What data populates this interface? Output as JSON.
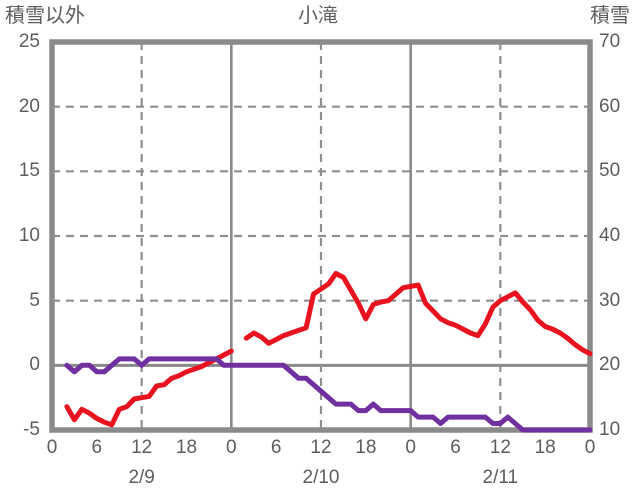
{
  "header": {
    "left_axis_title": "積雪以外",
    "chart_title": "小滝",
    "right_axis_title": "積雪"
  },
  "colors": {
    "temperature_line": "#e8131f",
    "snow_line": "#7030a0",
    "frame": "#8a8a8a",
    "grid": "#8f8f8f",
    "text": "#5d5d5d",
    "background": "#ffffff"
  },
  "chart_data": {
    "type": "line",
    "title": "小滝",
    "grid": "on",
    "left_axis": {
      "title": "積雪以外",
      "ticks": [
        25,
        20,
        15,
        10,
        5,
        0,
        -5
      ],
      "range": [
        -5,
        25
      ]
    },
    "right_axis": {
      "title": "積雪",
      "ticks": [
        70,
        60,
        50,
        40,
        30,
        20,
        10
      ],
      "range": [
        10,
        70
      ]
    },
    "x_axis": {
      "range_hours": [
        0,
        72
      ],
      "tick_hours": [
        0,
        6,
        12,
        18,
        24,
        30,
        36,
        42,
        48,
        54,
        60,
        66,
        72
      ],
      "tick_labels": [
        "0",
        "6",
        "12",
        "18",
        "0",
        "6",
        "12",
        "18",
        "0",
        "6",
        "12",
        "18",
        "0"
      ],
      "date_labels": [
        {
          "label": "2/9",
          "hour": 12
        },
        {
          "label": "2/10",
          "hour": 36
        },
        {
          "label": "2/11",
          "hour": 60
        }
      ],
      "dashed_gridline_hours": [
        12,
        36,
        60
      ],
      "solid_gridline_hours": [
        24,
        48
      ]
    },
    "dashed_gridline_left_values": [
      20,
      15,
      10,
      5
    ],
    "solid_gridline_left_values": [
      0
    ],
    "series": [
      {
        "name": "積雪以外",
        "axis": "left",
        "color": "#e8131f",
        "hours": [
          2,
          3,
          4,
          5,
          6,
          7,
          8,
          9,
          10,
          11,
          12,
          13,
          14,
          15,
          16,
          17,
          18,
          19,
          20,
          21,
          22,
          23,
          24,
          26,
          27,
          28,
          29,
          30,
          31,
          32,
          33,
          34,
          35,
          36,
          37,
          38,
          39,
          40,
          41,
          42,
          43,
          44,
          45,
          46,
          47,
          48,
          49,
          50,
          51,
          52,
          53,
          54,
          55,
          56,
          57,
          58,
          59,
          60,
          61,
          62,
          63,
          64,
          65,
          66,
          67,
          68,
          69,
          70,
          71,
          72
        ],
        "values": [
          -3.2,
          -4.2,
          -3.4,
          -3.7,
          -4.1,
          -4.4,
          -4.6,
          -3.4,
          -3.2,
          -2.6,
          -2.5,
          -2.4,
          -1.6,
          -1.5,
          -1.0,
          -0.8,
          -0.5,
          -0.3,
          -0.1,
          0.2,
          0.5,
          0.8,
          1.1,
          2.1,
          2.5,
          2.2,
          1.7,
          2.0,
          2.3,
          2.5,
          2.7,
          2.9,
          5.5,
          5.9,
          6.3,
          7.1,
          6.8,
          5.8,
          4.8,
          3.6,
          4.7,
          4.9,
          5.0,
          5.5,
          6.0,
          6.1,
          6.2,
          4.8,
          4.2,
          3.6,
          3.3,
          3.1,
          2.8,
          2.5,
          2.3,
          3.2,
          4.5,
          5.0,
          5.3,
          5.6,
          4.9,
          4.3,
          3.5,
          3.0,
          2.8,
          2.5,
          2.1,
          1.6,
          1.2,
          0.9
        ]
      },
      {
        "name": "積雪",
        "axis": "right",
        "color": "#7030a0",
        "hours": [
          2,
          3,
          4,
          5,
          6,
          7,
          8,
          9,
          10,
          11,
          12,
          13,
          14,
          15,
          16,
          17,
          18,
          19,
          20,
          21,
          22,
          23,
          24,
          25,
          26,
          27,
          28,
          29,
          30,
          31,
          32,
          33,
          34,
          35,
          36,
          37,
          38,
          39,
          40,
          41,
          42,
          43,
          44,
          45,
          46,
          47,
          48,
          49,
          50,
          51,
          52,
          53,
          54,
          55,
          56,
          57,
          58,
          59,
          60,
          61,
          62,
          63,
          64,
          65,
          66,
          67,
          68,
          69,
          70,
          71,
          72
        ],
        "values": [
          20,
          19,
          20,
          20,
          19,
          19,
          20,
          21,
          21,
          21,
          20,
          21,
          21,
          21,
          21,
          21,
          21,
          21,
          21,
          21,
          21,
          20,
          20,
          20,
          20,
          20,
          20,
          20,
          20,
          20,
          19,
          18,
          18,
          17,
          16,
          15,
          14,
          14,
          14,
          13,
          13,
          14,
          13,
          13,
          13,
          13,
          13,
          12,
          12,
          12,
          11,
          12,
          12,
          12,
          12,
          12,
          12,
          11,
          11,
          12,
          11,
          10,
          10,
          10,
          10,
          10,
          10,
          10,
          10,
          10,
          10
        ]
      }
    ]
  }
}
